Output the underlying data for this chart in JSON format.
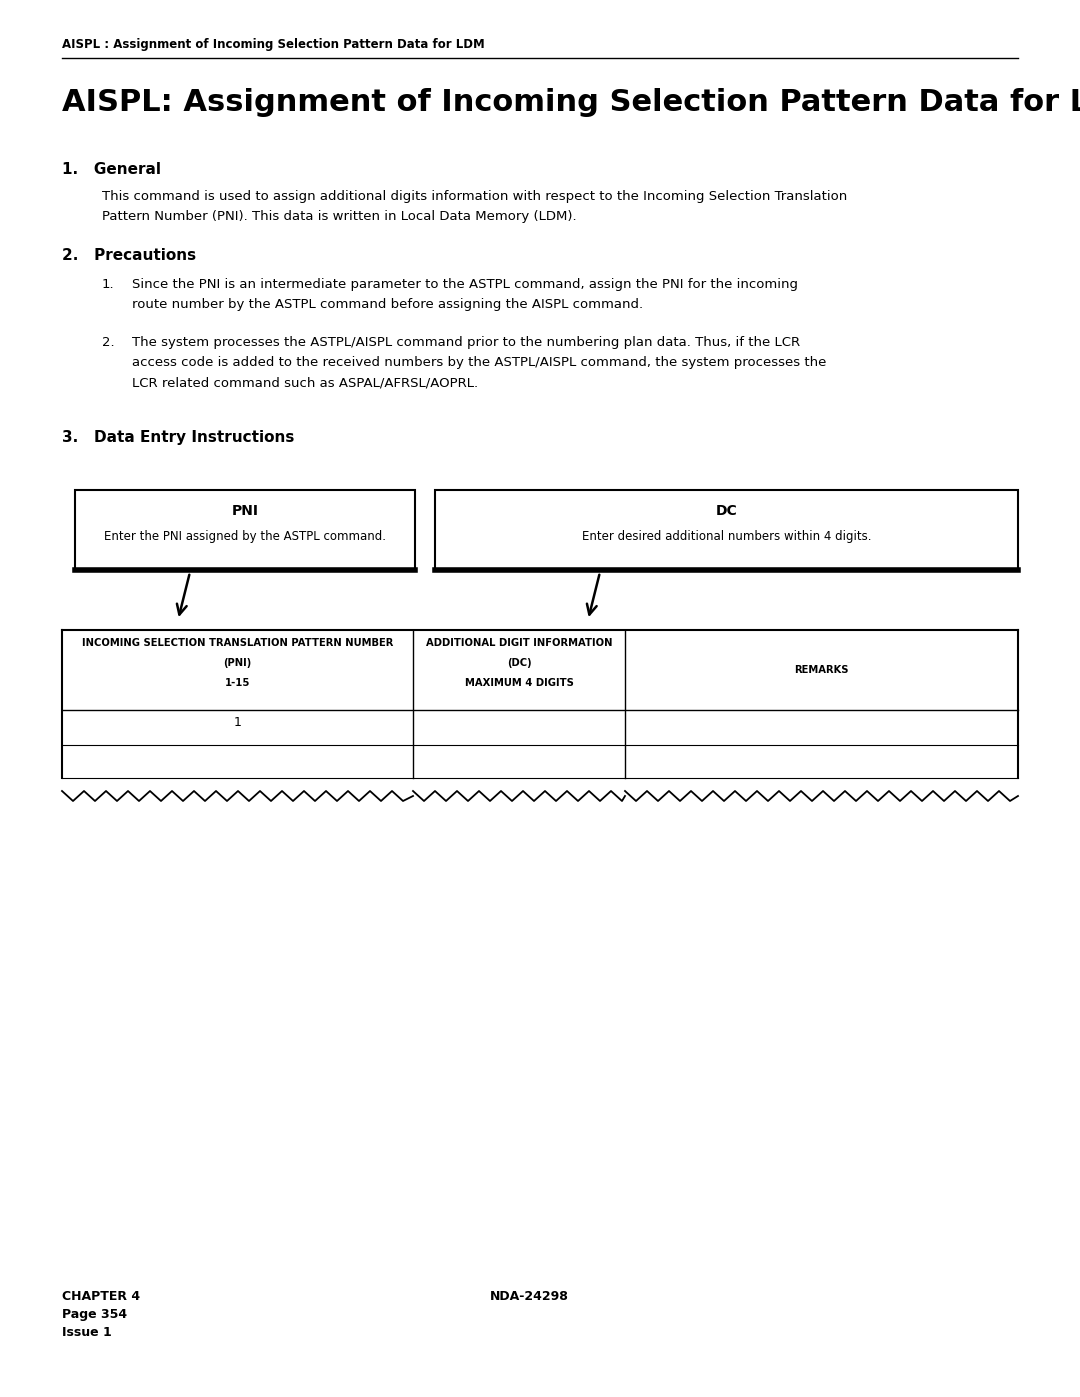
{
  "page_header": "AISPL : Assignment of Incoming Selection Pattern Data for LDM",
  "main_title": "AISPL: Assignment of Incoming Selection Pattern Data for LDM",
  "section1_title": "1.   General",
  "section1_body_line1": "This command is used to assign additional digits information with respect to the Incoming Selection Translation",
  "section1_body_line2": "Pattern Number (PNI). This data is written in Local Data Memory (LDM).",
  "section2_title": "2.   Precautions",
  "precaution1_num": "1.",
  "precaution1_line1": "Since the PNI is an intermediate parameter to the ASTPL command, assign the PNI for the incoming",
  "precaution1_line2": "route number by the ASTPL command before assigning the AISPL command.",
  "precaution2_num": "2.",
  "precaution2_line1": "The system processes the ASTPL/AISPL command prior to the numbering plan data. Thus, if the LCR",
  "precaution2_line2": "access code is added to the received numbers by the ASTPL/AISPL command, the system processes the",
  "precaution2_line3": "LCR related command such as ASPAL/AFRSL/AOPRL.",
  "section3_title": "3.   Data Entry Instructions",
  "box1_title": "PNI",
  "box1_body": "Enter the PNI assigned by the ASTPL command.",
  "box2_title": "DC",
  "box2_body": "Enter desired additional numbers within 4 digits.",
  "col1_header_line1": "INCOMING SELECTION TRANSLATION PATTERN NUMBER",
  "col1_header_line2": "(PNI)",
  "col1_header_line3": "1-15",
  "col2_header_line1": "ADDITIONAL DIGIT INFORMATION",
  "col2_header_line2": "(DC)",
  "col2_header_line3": "MAXIMUM 4 DIGITS",
  "col3_header": "REMARKS",
  "table_data_row1_col1": "1",
  "footer_left_line1": "CHAPTER 4",
  "footer_left_line2": "Page 354",
  "footer_left_line3": "Issue 1",
  "footer_right": "NDA-24298",
  "bg_color": "#ffffff",
  "text_color": "#000000"
}
